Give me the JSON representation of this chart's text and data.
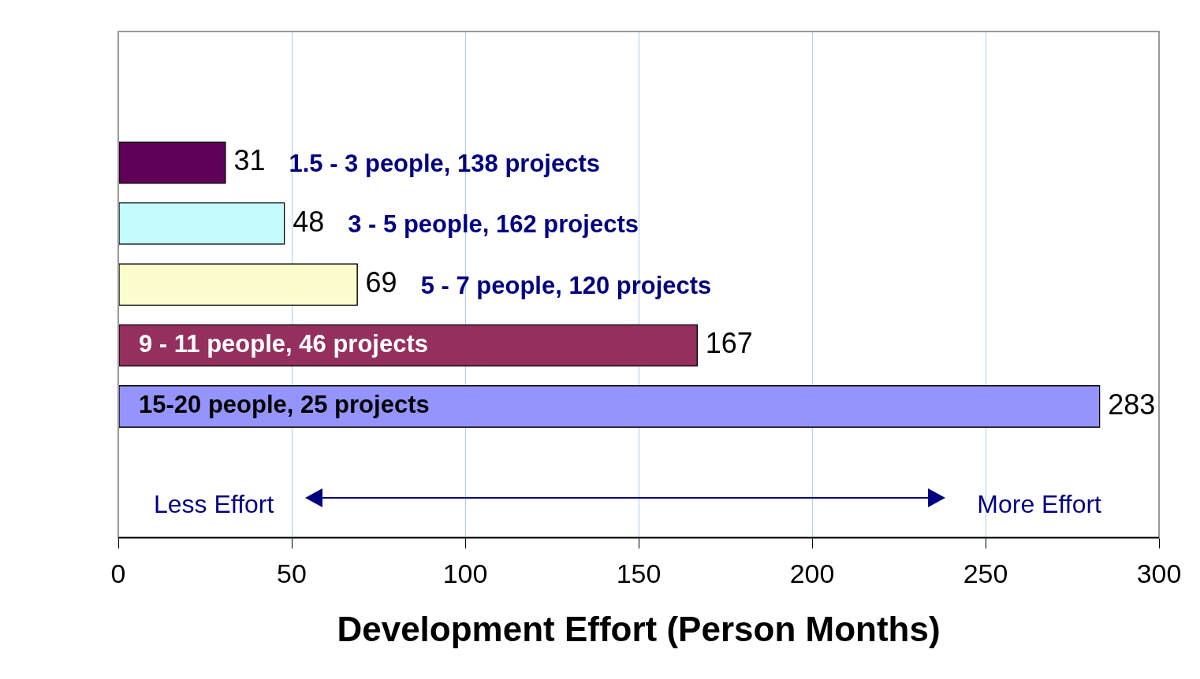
{
  "chart_data": {
    "type": "bar",
    "orientation": "horizontal",
    "xlabel": "Development Effort (Person Months)",
    "categories": [
      "1.5 - 3 people, 138 projects",
      "3 - 5 people, 162 projects",
      "5 - 7 people, 120 projects",
      "9 - 11 people, 46 projects",
      "15-20 people, 25 projects"
    ],
    "values": [
      31,
      48,
      69,
      167,
      283
    ],
    "colors": [
      "#5f0058",
      "#c4fcfc",
      "#fcfccc",
      "#952f5e",
      "#9494fc"
    ],
    "data_labels": true,
    "xlim": [
      0,
      300
    ],
    "xticks": [
      0,
      50,
      100,
      150,
      200,
      250,
      300
    ],
    "grid": "x",
    "legend": false,
    "annotations": [
      "Less Effort",
      "More Effort"
    ]
  }
}
